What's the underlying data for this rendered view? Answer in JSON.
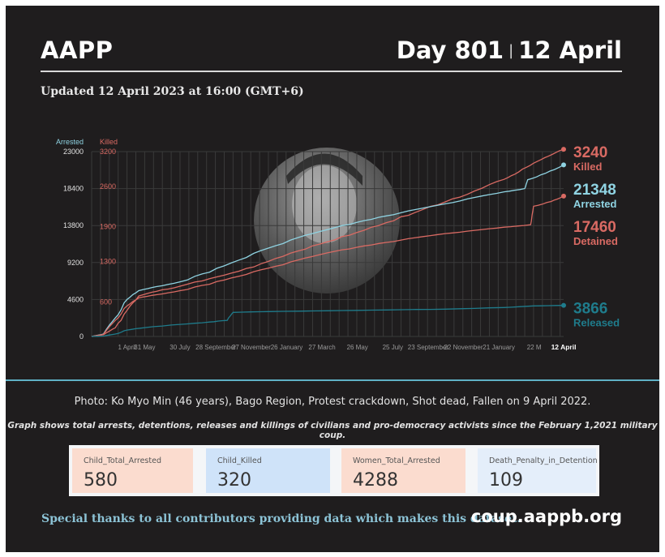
{
  "header": {
    "org": "AAPP",
    "day": "Day 801",
    "separator": "|",
    "date": "12 April",
    "updated": "Updated 12 April 2023 at 16:00 (GMT+6)"
  },
  "colors": {
    "killed": "#d96a63",
    "detained": "#d96a63",
    "arrested": "#8fd3e2",
    "released": "#1f7c8c",
    "background": "#1f1d1e",
    "divider": "#5fb1c6"
  },
  "photo": {
    "description_icon": "portrait-photo"
  },
  "caption": "Photo: Ko Myo Min (46 years), Bago Region, Protest crackdown, Shot dead, Fallen on 9 April 2022.",
  "note": "Graph shows total arrests, detentions, releases and killings of civilians and pro-democracy activists since the February 1,2021 military coup.",
  "cards": [
    {
      "label": "Child_Total_Arrested",
      "value": "580"
    },
    {
      "label": "Child_Killed",
      "value": "320"
    },
    {
      "label": "Women_Total_Arrested",
      "value": "4288"
    },
    {
      "label": "Death_Penalty_in_Detention",
      "value": "109"
    }
  ],
  "footer": {
    "thanks": "Special thanks to all contributors providing data which makes this dataset.",
    "site": "coup.aappb.org"
  },
  "chart_data": {
    "type": "line",
    "left_axis_title": "Arrested",
    "right_axis_title": "Killed",
    "left_ticks": [
      "0",
      "4600",
      "9200",
      "13800",
      "18400",
      "23000"
    ],
    "right_ticks": [
      "600",
      "1300",
      "1900",
      "2600",
      "3200"
    ],
    "ylim_arrested": [
      0,
      23000
    ],
    "ylim_killed": [
      0,
      3200
    ],
    "xlim": [
      0,
      801
    ],
    "x_ticks": [
      {
        "day": 60,
        "label": "1 April"
      },
      {
        "day": 90,
        "label": "31 May"
      },
      {
        "day": 150,
        "label": "30 July"
      },
      {
        "day": 211,
        "label": "28 September"
      },
      {
        "day": 271,
        "label": "27 November"
      },
      {
        "day": 331,
        "label": "26 January"
      },
      {
        "day": 391,
        "label": "27 March"
      },
      {
        "day": 451,
        "label": "26 May"
      },
      {
        "day": 511,
        "label": "25 July"
      },
      {
        "day": 571,
        "label": "23 September"
      },
      {
        "day": 631,
        "label": "22 November"
      },
      {
        "day": 691,
        "label": "21 January"
      },
      {
        "day": 751,
        "label": "22 M"
      },
      {
        "day": 801,
        "label": "12 April"
      }
    ],
    "series": [
      {
        "name": "Killed",
        "axis": "killed",
        "end_value": "3240",
        "x": [
          0,
          20,
          40,
          60,
          80,
          110,
          150,
          200,
          250,
          300,
          350,
          400,
          450,
          500,
          550,
          600,
          650,
          700,
          725,
          750,
          775,
          801
        ],
        "values": [
          0,
          30,
          150,
          450,
          700,
          780,
          870,
          1000,
          1130,
          1300,
          1480,
          1640,
          1800,
          1970,
          2150,
          2330,
          2520,
          2720,
          2850,
          3000,
          3120,
          3240
        ]
      },
      {
        "name": "Arrested",
        "axis": "arrested",
        "end_value": "21348",
        "x": [
          0,
          20,
          40,
          60,
          80,
          110,
          150,
          200,
          250,
          300,
          350,
          400,
          450,
          500,
          550,
          600,
          650,
          700,
          735,
          740,
          770,
          801
        ],
        "values": [
          0,
          300,
          2300,
          4600,
          5700,
          6200,
          6800,
          8000,
          9500,
          11000,
          12300,
          13300,
          14200,
          15000,
          15800,
          16500,
          17300,
          18000,
          18400,
          19500,
          20300,
          21348
        ]
      },
      {
        "name": "Detained",
        "axis": "arrested",
        "end_value": "17460",
        "x": [
          0,
          20,
          40,
          60,
          80,
          110,
          150,
          200,
          250,
          300,
          350,
          400,
          450,
          500,
          550,
          600,
          650,
          700,
          745,
          750,
          780,
          801
        ],
        "values": [
          0,
          250,
          2000,
          3800,
          4800,
          5200,
          5700,
          6500,
          7500,
          8500,
          9500,
          10400,
          11100,
          11700,
          12300,
          12800,
          13200,
          13600,
          13900,
          16200,
          16800,
          17460
        ]
      },
      {
        "name": "Released",
        "axis": "arrested",
        "end_value": "3866",
        "x": [
          0,
          20,
          40,
          60,
          90,
          150,
          200,
          230,
          240,
          300,
          400,
          500,
          600,
          700,
          750,
          801
        ],
        "values": [
          0,
          50,
          300,
          800,
          1100,
          1500,
          1800,
          2000,
          3000,
          3100,
          3200,
          3300,
          3400,
          3600,
          3800,
          3866
        ]
      }
    ]
  }
}
